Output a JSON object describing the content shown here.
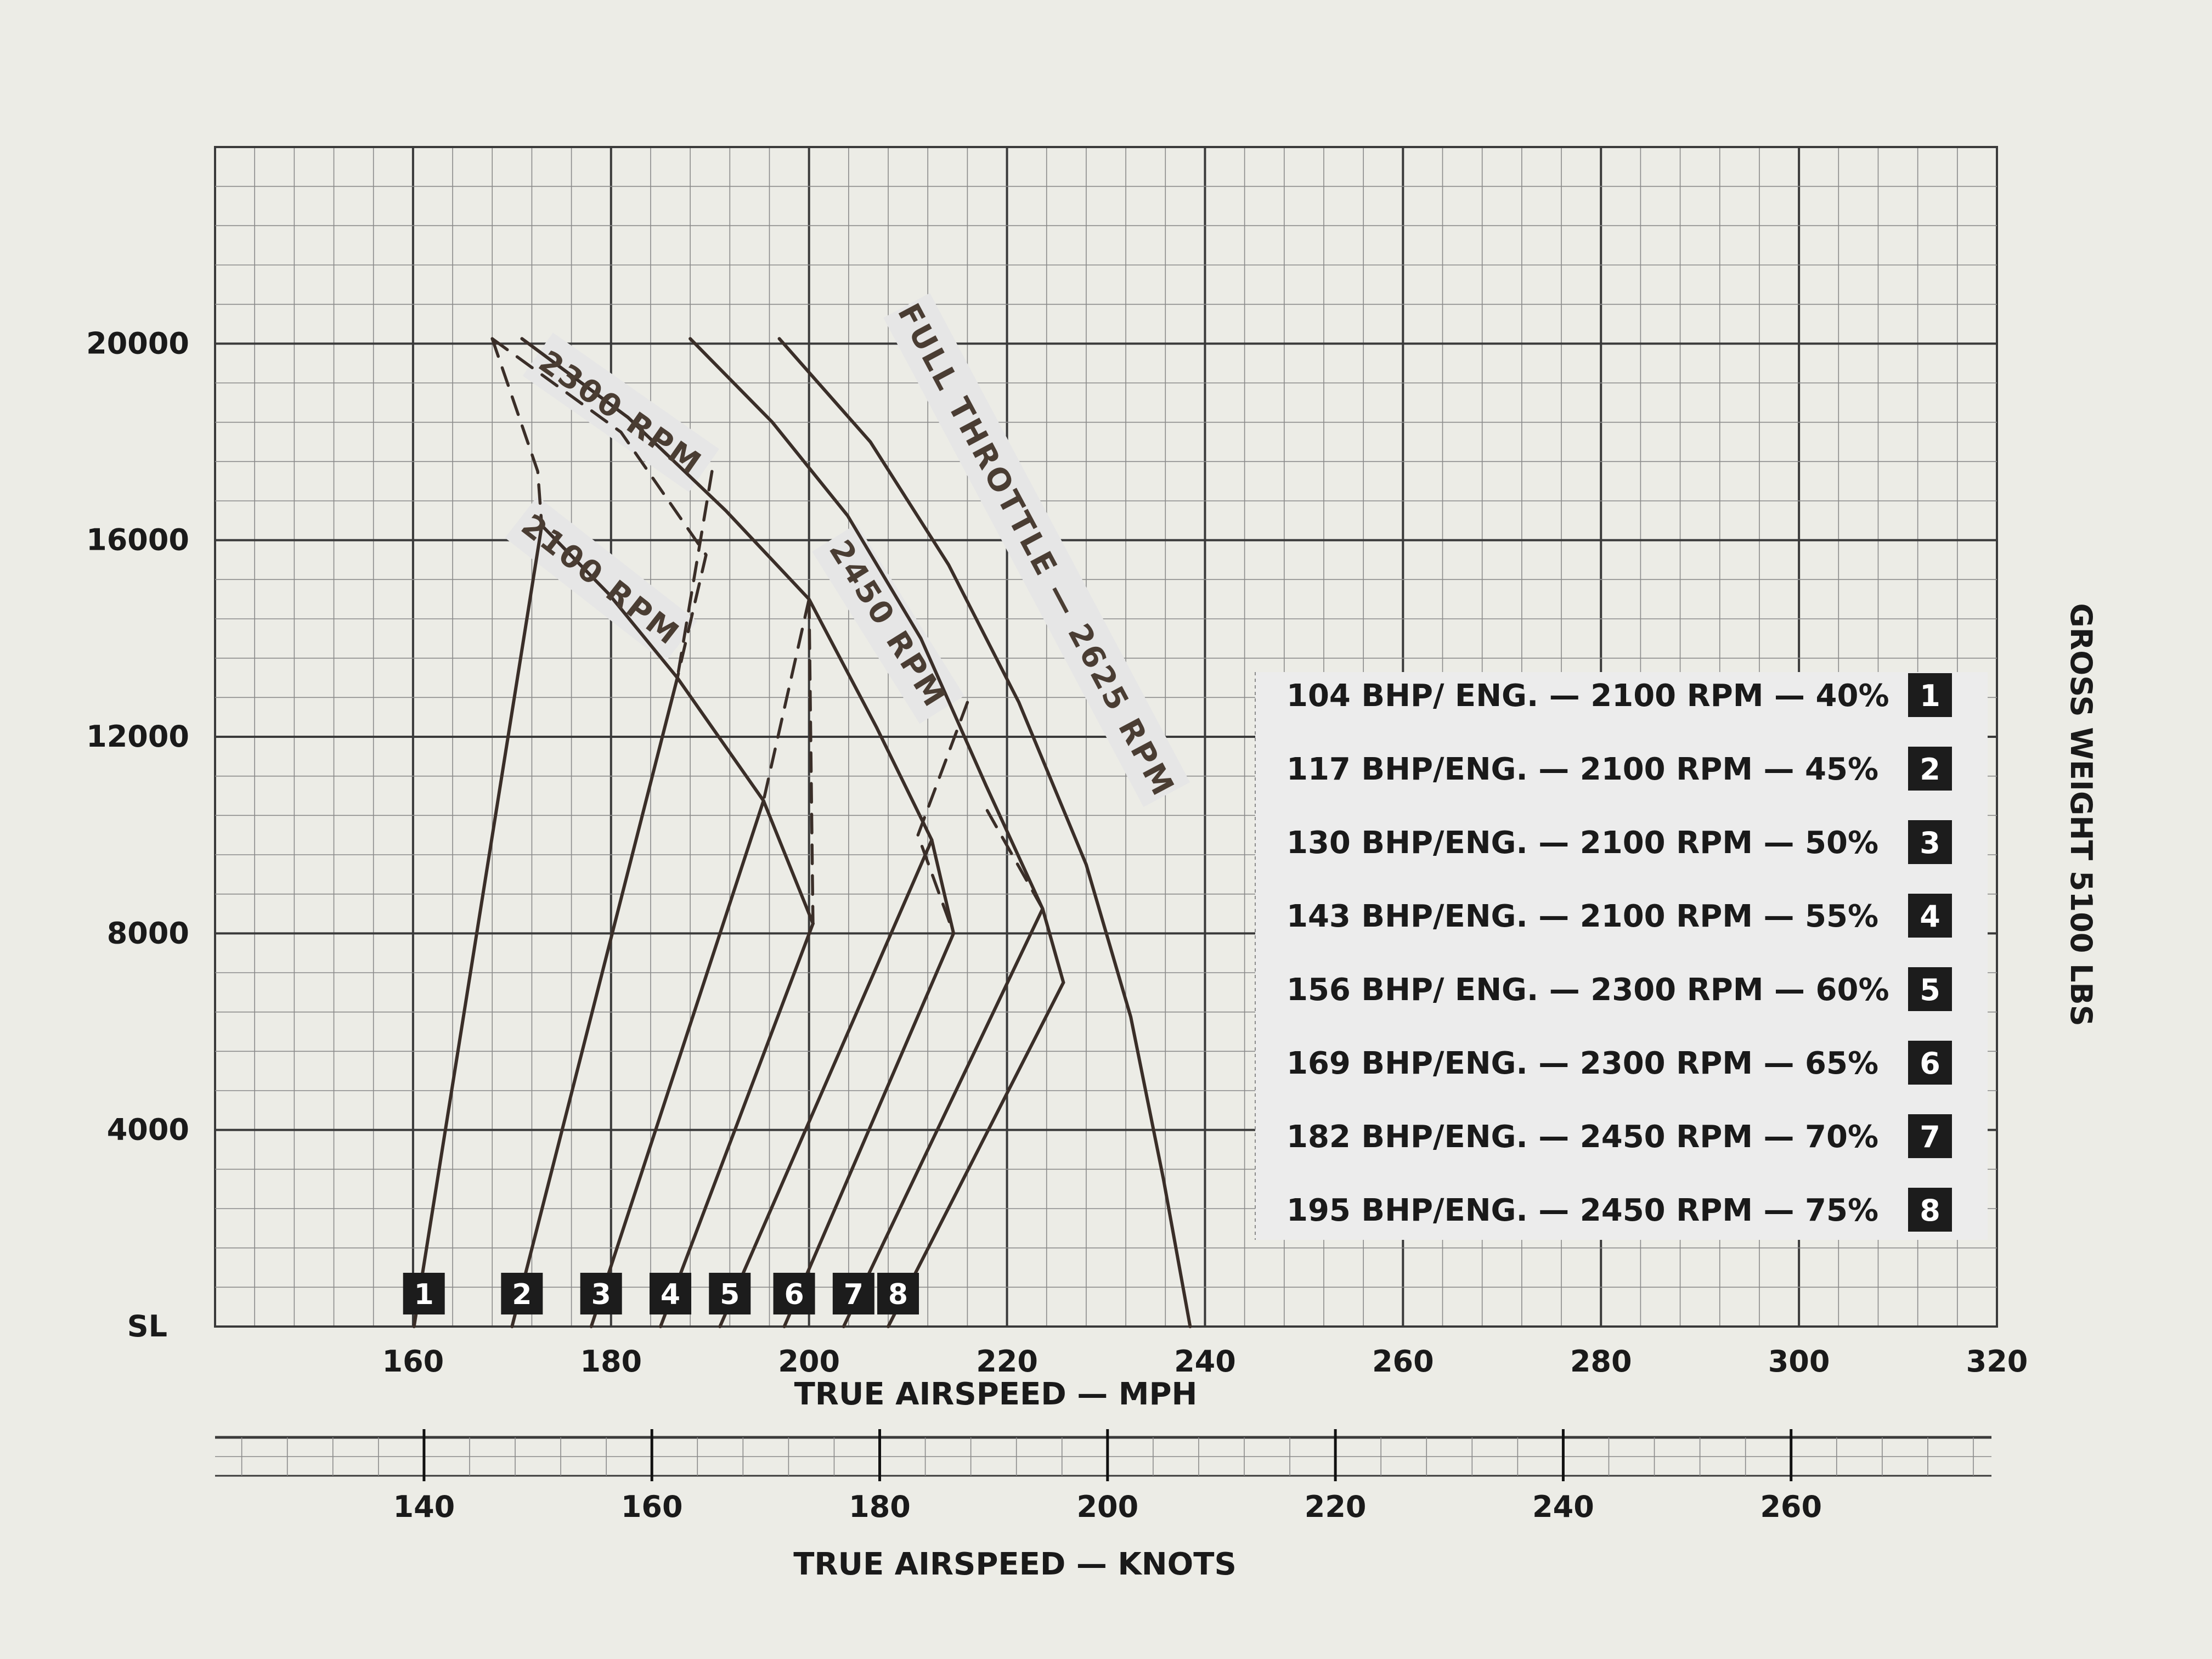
{
  "chart_data": {
    "type": "line",
    "title": "",
    "y_axis": {
      "ticks": [
        {
          "value": 0,
          "label": "SL"
        },
        {
          "value": 4000,
          "label": "4000"
        },
        {
          "value": 8000,
          "label": "8000"
        },
        {
          "value": 12000,
          "label": "12000"
        },
        {
          "value": 16000,
          "label": "16000"
        },
        {
          "value": 20000,
          "label": "20000"
        }
      ],
      "ylim": [
        0,
        24000
      ]
    },
    "x_axis_mph": {
      "label": "TRUE AIRSPEED — MPH",
      "ticks": [
        "160",
        "180",
        "200",
        "220",
        "240",
        "260",
        "280",
        "300",
        "320"
      ],
      "tick_values": [
        160,
        180,
        200,
        220,
        240,
        260,
        280,
        300,
        320
      ],
      "xlim": [
        140,
        320
      ]
    },
    "x_axis_knots": {
      "label": "TRUE AIRSPEED — KNOTS",
      "ticks": [
        "140",
        "160",
        "180",
        "200",
        "220",
        "240",
        "260"
      ],
      "tick_values": [
        140,
        160,
        180,
        200,
        220,
        240,
        260
      ]
    },
    "side_label": "GROSS WEIGHT 5100 LBS",
    "rpm_labels": [
      {
        "text": "2300 RPM",
        "x": 181,
        "y": 18600,
        "angle": 35
      },
      {
        "text": "2100 RPM",
        "x": 179,
        "y": 15200,
        "angle": 38
      },
      {
        "text": "2450 RPM",
        "x": 208,
        "y": 14300,
        "angle": 58
      },
      {
        "text": "FULL THROTTLE — 2625 RPM",
        "x": 223,
        "y": 15800,
        "angle": 62
      }
    ],
    "series": [
      {
        "name": "1",
        "style": "solid",
        "points": [
          [
            160.1,
            0
          ],
          [
            173.0,
            16300
          ]
        ]
      },
      {
        "name": "2",
        "style": "solid",
        "points": [
          [
            170.0,
            0
          ],
          [
            186.7,
            13200
          ]
        ]
      },
      {
        "name": "3",
        "style": "solid",
        "points": [
          [
            178.0,
            0
          ],
          [
            195.4,
            10700
          ]
        ]
      },
      {
        "name": "4",
        "style": "solid",
        "points": [
          [
            185.0,
            0
          ],
          [
            200.4,
            8200
          ]
        ]
      },
      {
        "name": "5",
        "style": "solid",
        "points": [
          [
            191.0,
            0
          ],
          [
            212.4,
            9900
          ]
        ]
      },
      {
        "name": "6",
        "style": "solid",
        "points": [
          [
            197.5,
            0
          ],
          [
            214.6,
            8000
          ]
        ]
      },
      {
        "name": "7",
        "style": "solid",
        "points": [
          [
            203.5,
            0
          ],
          [
            223.6,
            8500
          ]
        ]
      },
      {
        "name": "8",
        "style": "solid",
        "points": [
          [
            208.0,
            0
          ],
          [
            225.7,
            7000
          ]
        ]
      },
      {
        "name": "2100 RPM",
        "style": "solid",
        "points": [
          [
            173.0,
            16300
          ],
          [
            179.8,
            14900
          ],
          [
            186.7,
            13200
          ],
          [
            195.4,
            10700
          ],
          [
            200.4,
            8200
          ]
        ]
      },
      {
        "name": "2300 RPM",
        "style": "solid",
        "points": [
          [
            171.0,
            20100
          ],
          [
            181.7,
            18500
          ],
          [
            191.6,
            16600
          ],
          [
            200.0,
            14800
          ],
          [
            206.8,
            12200
          ],
          [
            212.4,
            9900
          ],
          [
            214.6,
            8000
          ]
        ]
      },
      {
        "name": "2450 RPM",
        "style": "solid",
        "points": [
          [
            188.0,
            20100
          ],
          [
            196.3,
            18400
          ],
          [
            203.9,
            16500
          ],
          [
            211.3,
            14000
          ],
          [
            217.9,
            11000
          ],
          [
            223.6,
            8500
          ],
          [
            225.7,
            7000
          ]
        ]
      },
      {
        "name": "FULL THROTTLE — 2625 RPM",
        "style": "solid",
        "points": [
          [
            197.0,
            20100
          ],
          [
            206.2,
            18000
          ],
          [
            214.1,
            15500
          ],
          [
            221.2,
            12700
          ],
          [
            228.0,
            9400
          ],
          [
            232.5,
            6300
          ],
          [
            235.8,
            3000
          ],
          [
            238.5,
            0
          ]
        ]
      },
      {
        "name": "boundary-1",
        "style": "dashed",
        "points": [
          [
            168.0,
            20100
          ],
          [
            172.6,
            17400
          ],
          [
            173.0,
            16300
          ]
        ]
      },
      {
        "name": "boundary-2",
        "style": "dashed",
        "points": [
          [
            168.0,
            20100
          ],
          [
            181.0,
            18200
          ],
          [
            189.6,
            15700
          ],
          [
            186.7,
            13200
          ]
        ]
      },
      {
        "name": "boundary-3",
        "style": "dashed",
        "points": [
          [
            190.2,
            17400
          ],
          [
            186.7,
            13200
          ]
        ]
      },
      {
        "name": "boundary-4",
        "style": "dashed",
        "points": [
          [
            200.0,
            14800
          ],
          [
            195.4,
            10700
          ]
        ]
      },
      {
        "name": "boundary-5",
        "style": "dashed",
        "points": [
          [
            200.0,
            14800
          ],
          [
            200.4,
            8200
          ]
        ]
      },
      {
        "name": "boundary-6",
        "style": "dashed",
        "points": [
          [
            206.8,
            12200
          ],
          [
            212.4,
            9900
          ]
        ]
      },
      {
        "name": "boundary-7",
        "style": "dashed",
        "points": [
          [
            216.0,
            12700
          ],
          [
            211.0,
            10000
          ],
          [
            214.6,
            8000
          ]
        ]
      },
      {
        "name": "boundary-8",
        "style": "dashed",
        "points": [
          [
            218.0,
            10500
          ],
          [
            223.6,
            8500
          ]
        ]
      }
    ],
    "start_markers": [
      {
        "label": "1",
        "x": 160.1
      },
      {
        "label": "2",
        "x": 170.0
      },
      {
        "label": "3",
        "x": 178.0
      },
      {
        "label": "4",
        "x": 185.0
      },
      {
        "label": "5",
        "x": 191.0
      },
      {
        "label": "6",
        "x": 197.5
      },
      {
        "label": "7",
        "x": 203.5
      },
      {
        "label": "8",
        "x": 208.0
      }
    ],
    "legend": {
      "placement": "right",
      "entries": [
        {
          "text": "104 BHP/ ENG. — 2100 RPM — 40%",
          "box": "1"
        },
        {
          "text": "117 BHP/ENG. — 2100 RPM — 45%",
          "box": "2"
        },
        {
          "text": "130 BHP/ENG. — 2100 RPM — 50%",
          "box": "3"
        },
        {
          "text": "143 BHP/ENG. — 2100 RPM — 55%",
          "box": "4"
        },
        {
          "text": "156 BHP/ ENG. — 2300 RPM — 60%",
          "box": "5"
        },
        {
          "text": "169 BHP/ENG. — 2300 RPM — 65%",
          "box": "6"
        },
        {
          "text": "182 BHP/ENG. — 2450 RPM — 70%",
          "box": "7"
        },
        {
          "text": "195 BHP/ENG. — 2450 RPM — 75%",
          "box": "8"
        }
      ]
    },
    "grid": true,
    "colors": {
      "paper": "#ecece6",
      "minor_grid": "#8a8a8a",
      "major_grid": "#3a3a3a",
      "curve": "#3a2e28",
      "label_band": "#e6e6e6",
      "marker_box": "#1c1c1c"
    }
  }
}
